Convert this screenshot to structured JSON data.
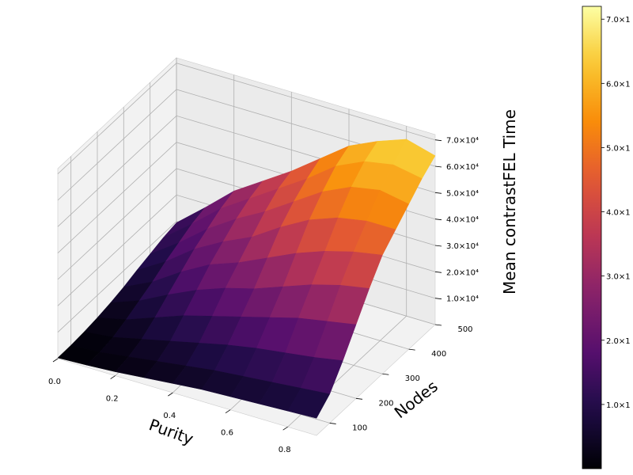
{
  "chart_data": {
    "type": "surface3d",
    "title": "",
    "xlabel": "Purity",
    "ylabel": "Nodes",
    "zlabel": "Mean contrastFEL Time",
    "colormap": "inferno",
    "xlim": [
      0.0,
      0.9
    ],
    "ylim": [
      50,
      500
    ],
    "zlim": [
      0,
      72000
    ],
    "x_ticks": [
      "0.0",
      "0.2",
      "0.4",
      "0.6",
      "0.8"
    ],
    "y_ticks": [
      "100",
      "200",
      "300",
      "400",
      "500"
    ],
    "z_ticks": [
      "1.0×10⁴",
      "2.0×10⁴",
      "3.0×10⁴",
      "4.0×10⁴",
      "5.0×10⁴",
      "6.0×10⁴",
      "7.0×10⁴"
    ],
    "colorbar_ticks": [
      "1.0×1",
      "2.0×1",
      "3.0×1",
      "4.0×1",
      "5.0×1",
      "6.0×1",
      "7.0×1"
    ],
    "x": [
      0.0,
      0.1,
      0.2,
      0.3,
      0.4,
      0.5,
      0.6,
      0.7,
      0.8,
      0.9
    ],
    "y": [
      50,
      100,
      150,
      200,
      250,
      300,
      350,
      400,
      450,
      500
    ],
    "z": [
      [
        300,
        400,
        800,
        1500,
        2500,
        3800,
        5500,
        7000,
        8500,
        9500
      ],
      [
        800,
        1000,
        2000,
        4000,
        6500,
        9000,
        12000,
        14500,
        17000,
        18500
      ],
      [
        1500,
        2500,
        4500,
        8000,
        12000,
        16000,
        20000,
        23000,
        26000,
        28000
      ],
      [
        2500,
        4000,
        7000,
        12000,
        17000,
        22000,
        26000,
        30000,
        33000,
        35000
      ],
      [
        3500,
        5500,
        9500,
        15000,
        21000,
        26000,
        31000,
        36000,
        40000,
        42000
      ],
      [
        4500,
        7000,
        12000,
        18000,
        24000,
        31000,
        38000,
        43000,
        47000,
        50000
      ],
      [
        5000,
        8000,
        14000,
        21000,
        28000,
        36000,
        44000,
        50000,
        55000,
        58000
      ],
      [
        5500,
        9000,
        15500,
        24000,
        32000,
        40000,
        48000,
        55000,
        60000,
        63000
      ],
      [
        6000,
        10000,
        17000,
        26000,
        35000,
        43000,
        50000,
        57000,
        62000,
        67000
      ],
      [
        6500,
        11000,
        19000,
        28000,
        37000,
        45000,
        50000,
        55000,
        60000,
        64000
      ]
    ]
  }
}
